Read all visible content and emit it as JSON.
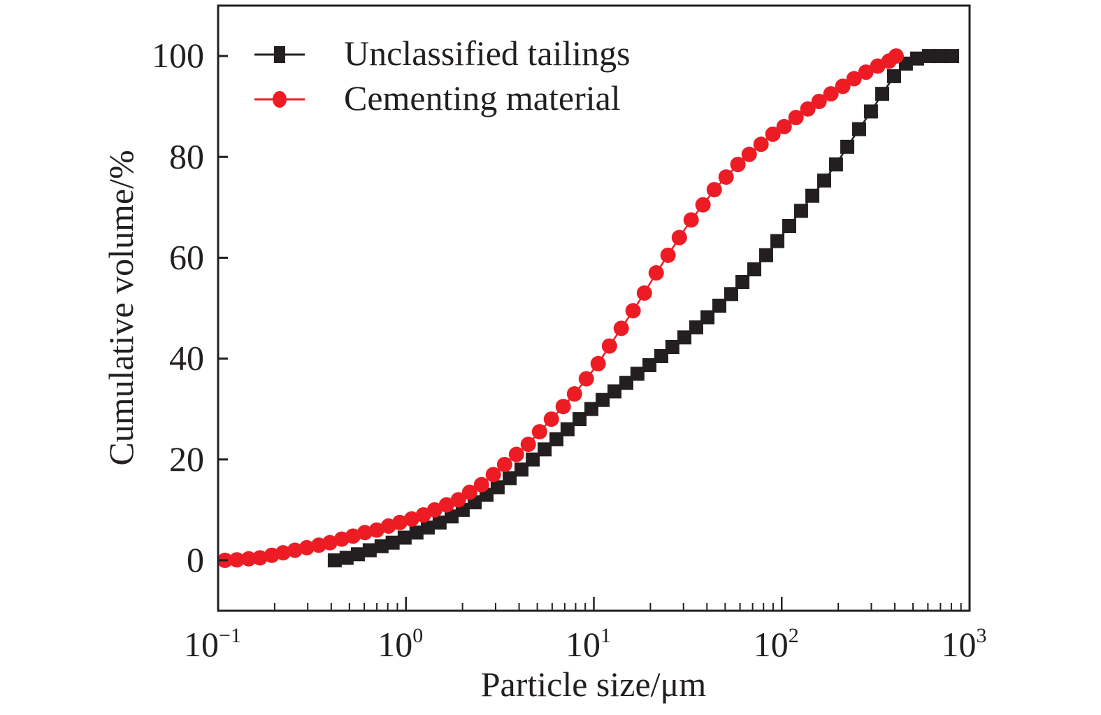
{
  "chart_data": {
    "type": "scatter",
    "title": "",
    "xlabel": "Particle size/μm",
    "ylabel": "Cumulative volume/%",
    "xscale": "log",
    "xlim": [
      0.1,
      1000
    ],
    "ylim": [
      -10,
      110
    ],
    "x_ticks": [
      {
        "base": "10",
        "exp": "−1"
      },
      {
        "base": "10",
        "exp": "0"
      },
      {
        "base": "10",
        "exp": "1"
      },
      {
        "base": "10",
        "exp": "2"
      },
      {
        "base": "10",
        "exp": "3"
      }
    ],
    "y_ticks": [
      "0",
      "20",
      "40",
      "60",
      "80",
      "100"
    ],
    "y_tick_values": [
      0,
      20,
      40,
      60,
      80,
      100
    ],
    "grid": false,
    "legend_position": "top-left",
    "series": [
      {
        "name": "Unclassified tailings",
        "color": "#231f20",
        "marker": "square",
        "log10_x": [
          -0.379,
          -0.316,
          -0.256,
          -0.193,
          -0.13,
          -0.071,
          -0.007,
          0.056,
          0.116,
          0.179,
          0.243,
          0.302,
          0.366,
          0.429,
          0.488,
          0.552,
          0.615,
          0.675,
          0.738,
          0.801,
          0.86,
          0.924,
          0.987,
          1.047,
          1.11,
          1.173,
          1.232,
          1.296,
          1.359,
          1.418,
          1.482,
          1.545,
          1.605,
          1.668,
          1.731,
          1.791,
          1.854,
          1.917,
          1.977,
          2.04,
          2.103,
          2.163,
          2.226,
          2.289,
          2.349,
          2.412,
          2.475,
          2.535,
          2.598,
          2.661,
          2.721,
          2.784,
          2.847,
          2.907
        ],
        "y": [
          0,
          0.5,
          1.2,
          2,
          2.8,
          3.5,
          4.5,
          5.5,
          6.5,
          7.5,
          8.7,
          10,
          11.5,
          13,
          14.5,
          16.3,
          18,
          20,
          22,
          24,
          26,
          28,
          30,
          31.8,
          33.5,
          35.2,
          37,
          38.7,
          40.5,
          42.3,
          44.2,
          46.2,
          48.2,
          50.5,
          52.8,
          55.2,
          57.7,
          60.5,
          63.3,
          66.3,
          69.3,
          72.3,
          75.3,
          78.5,
          82,
          85.5,
          89,
          92.5,
          96,
          98.5,
          99.5,
          100,
          100,
          100
        ]
      },
      {
        "name": "Cementing material",
        "color": "#ed1c24",
        "marker": "circle",
        "log10_x": [
          -0.963,
          -0.9,
          -0.837,
          -0.777,
          -0.714,
          -0.654,
          -0.591,
          -0.528,
          -0.464,
          -0.405,
          -0.342,
          -0.282,
          -0.219,
          -0.156,
          -0.093,
          -0.033,
          0.03,
          0.093,
          0.153,
          0.216,
          0.279,
          0.339,
          0.402,
          0.465,
          0.525,
          0.588,
          0.651,
          0.711,
          0.774,
          0.837,
          0.897,
          0.96,
          1.023,
          1.083,
          1.146,
          1.209,
          1.269,
          1.332,
          1.395,
          1.455,
          1.518,
          1.581,
          1.641,
          1.704,
          1.767,
          1.827,
          1.89,
          1.953,
          2.013,
          2.076,
          2.139,
          2.199,
          2.262,
          2.325,
          2.385,
          2.448,
          2.511,
          2.571,
          2.609
        ],
        "y": [
          0,
          0.1,
          0.3,
          0.5,
          1,
          1.5,
          2,
          2.5,
          3,
          3.5,
          4.2,
          4.8,
          5.5,
          6,
          6.8,
          7.5,
          8.2,
          9,
          10,
          11,
          12,
          13.5,
          15,
          17,
          19,
          21,
          23,
          25.5,
          28,
          30.5,
          33,
          36,
          39,
          42.5,
          46,
          49.5,
          53,
          57,
          60.5,
          64,
          67.5,
          70.5,
          73.5,
          76,
          78.5,
          80.5,
          82.5,
          84.5,
          86,
          87.8,
          89.5,
          91,
          92.5,
          94,
          95.5,
          96.8,
          98,
          99,
          100
        ]
      }
    ]
  }
}
